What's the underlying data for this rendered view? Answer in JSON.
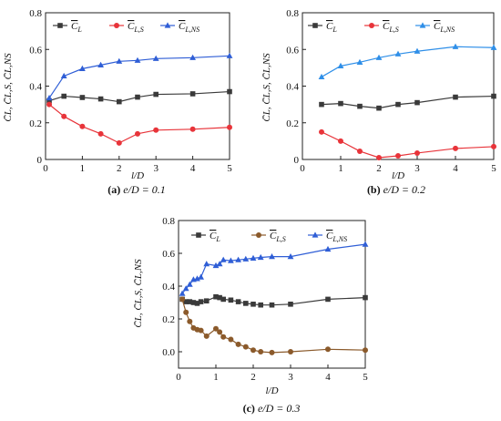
{
  "chart_data": [
    {
      "type": "line",
      "caption_letter": "(a)",
      "caption_text": "e/D = 0.1",
      "xlabel": "l/D",
      "ylabel": "C̄L, C̄L,S, C̄L,NS",
      "xlim": [
        0,
        5
      ],
      "ylim": [
        0,
        0.8
      ],
      "xticks": [
        0,
        1,
        2,
        3,
        4,
        5
      ],
      "yticks": [
        0.0,
        0.2,
        0.4,
        0.6,
        0.8
      ],
      "yticklabels": [
        "0",
        "0.2",
        "0.4",
        "0.6",
        "0.8"
      ],
      "legend_position": "top",
      "series": [
        {
          "name": "C̄L",
          "marker": "square",
          "color": "#3a3a3a",
          "x": [
            0.1,
            0.5,
            1,
            1.5,
            2,
            2.5,
            3,
            4,
            5
          ],
          "y": [
            0.32,
            0.345,
            0.338,
            0.33,
            0.315,
            0.34,
            0.355,
            0.358,
            0.37
          ]
        },
        {
          "name": "C̄L,S",
          "marker": "circle",
          "color": "#e8343a",
          "x": [
            0.1,
            0.5,
            1,
            1.5,
            2,
            2.5,
            3,
            4,
            5
          ],
          "y": [
            0.3,
            0.235,
            0.18,
            0.14,
            0.09,
            0.14,
            0.16,
            0.165,
            0.175
          ]
        },
        {
          "name": "C̄L,NS",
          "marker": "triangle",
          "color": "#2f5ed6",
          "x": [
            0.1,
            0.5,
            1,
            1.5,
            2,
            2.5,
            3,
            4,
            5
          ],
          "y": [
            0.335,
            0.455,
            0.495,
            0.515,
            0.535,
            0.54,
            0.55,
            0.555,
            0.565
          ]
        }
      ]
    },
    {
      "type": "line",
      "caption_letter": "(b)",
      "caption_text": "e/D = 0.2",
      "xlabel": "l/D",
      "ylabel": "C̄L, C̄L,S, C̄L,NS",
      "xlim": [
        0,
        5
      ],
      "ylim": [
        0,
        0.8
      ],
      "xticks": [
        0,
        1,
        2,
        3,
        4,
        5
      ],
      "yticks": [
        0.0,
        0.2,
        0.4,
        0.6,
        0.8
      ],
      "yticklabels": [
        "0",
        "0.2",
        "0.4",
        "0.6",
        "0.8"
      ],
      "legend_position": "top",
      "series": [
        {
          "name": "C̄L",
          "marker": "square",
          "color": "#3a3a3a",
          "x": [
            0.5,
            1,
            1.5,
            2,
            2.5,
            3,
            4,
            5
          ],
          "y": [
            0.3,
            0.305,
            0.29,
            0.28,
            0.3,
            0.31,
            0.34,
            0.345
          ]
        },
        {
          "name": "C̄L,S",
          "marker": "circle",
          "color": "#e8343a",
          "x": [
            0.5,
            1,
            1.5,
            2,
            2.5,
            3,
            4,
            5
          ],
          "y": [
            0.15,
            0.1,
            0.045,
            0.01,
            0.02,
            0.035,
            0.06,
            0.07
          ]
        },
        {
          "name": "C̄L,NS",
          "marker": "triangle",
          "color": "#2f8fe8",
          "x": [
            0.5,
            1,
            1.5,
            2,
            2.5,
            3,
            4,
            5
          ],
          "y": [
            0.45,
            0.51,
            0.53,
            0.555,
            0.575,
            0.59,
            0.615,
            0.61
          ]
        }
      ]
    },
    {
      "type": "line",
      "caption_letter": "(c)",
      "caption_text": "e/D = 0.3",
      "xlabel": "l/D",
      "ylabel": "C̄L, C̄L,S, C̄L,NS",
      "xlim": [
        0,
        5
      ],
      "ylim": [
        -0.1,
        0.8
      ],
      "xticks": [
        0,
        1,
        2,
        3,
        4,
        5
      ],
      "yticks": [
        0.0,
        0.2,
        0.4,
        0.6,
        0.8
      ],
      "yticklabels": [
        "0.0",
        "0.2",
        "0.4",
        "0.6",
        "0.8"
      ],
      "legend_position": "top",
      "series": [
        {
          "name": "C̄L",
          "marker": "square",
          "color": "#3a3a3a",
          "x": [
            0.1,
            0.2,
            0.3,
            0.4,
            0.5,
            0.6,
            0.75,
            1.0,
            1.1,
            1.2,
            1.4,
            1.6,
            1.8,
            2.0,
            2.2,
            2.5,
            3.0,
            4.0,
            5.0
          ],
          "y": [
            0.32,
            0.305,
            0.305,
            0.3,
            0.295,
            0.305,
            0.31,
            0.335,
            0.33,
            0.32,
            0.315,
            0.305,
            0.295,
            0.29,
            0.285,
            0.285,
            0.29,
            0.32,
            0.33
          ]
        },
        {
          "name": "C̄L,S",
          "marker": "circle",
          "color": "#8b5a2b",
          "x": [
            0.1,
            0.2,
            0.3,
            0.4,
            0.5,
            0.6,
            0.75,
            1.0,
            1.1,
            1.2,
            1.4,
            1.6,
            1.8,
            2.0,
            2.2,
            2.5,
            3.0,
            4.0,
            5.0
          ],
          "y": [
            0.32,
            0.24,
            0.185,
            0.145,
            0.135,
            0.13,
            0.095,
            0.14,
            0.12,
            0.09,
            0.075,
            0.045,
            0.03,
            0.01,
            0.0,
            -0.005,
            0.0,
            0.015,
            0.01
          ]
        },
        {
          "name": "C̄L,NS",
          "marker": "triangle",
          "color": "#2f5ed6",
          "x": [
            0.1,
            0.2,
            0.3,
            0.4,
            0.5,
            0.6,
            0.75,
            1.0,
            1.1,
            1.2,
            1.4,
            1.6,
            1.8,
            2.0,
            2.2,
            2.5,
            3.0,
            4.0,
            5.0
          ],
          "y": [
            0.355,
            0.385,
            0.41,
            0.44,
            0.445,
            0.455,
            0.535,
            0.525,
            0.535,
            0.56,
            0.555,
            0.56,
            0.565,
            0.57,
            0.575,
            0.58,
            0.58,
            0.625,
            0.655
          ]
        }
      ]
    }
  ]
}
